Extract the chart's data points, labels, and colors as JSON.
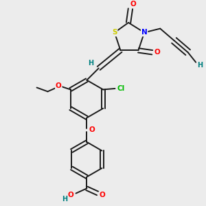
{
  "bg_color": "#ececec",
  "bond_color": "#1a1a1a",
  "atom_colors": {
    "S": "#cccc00",
    "N": "#0000ff",
    "O": "#ff0000",
    "Cl": "#00bb00",
    "H": "#008080",
    "C": "#1a1a1a"
  },
  "figsize": [
    3.0,
    3.0
  ],
  "dpi": 100
}
